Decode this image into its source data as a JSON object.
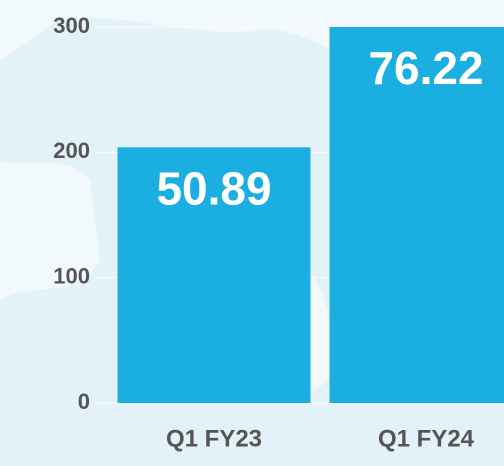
{
  "chart_data": {
    "type": "bar",
    "categories": [
      "Q1 FY23",
      "Q1 FY24"
    ],
    "values": [
      204,
      306
    ],
    "annotations": [
      "50.89",
      "76.22"
    ],
    "color": "#1baee1",
    "ylim": [
      0,
      300
    ],
    "yticks": [
      0,
      100,
      200,
      300
    ],
    "grid": true
  }
}
